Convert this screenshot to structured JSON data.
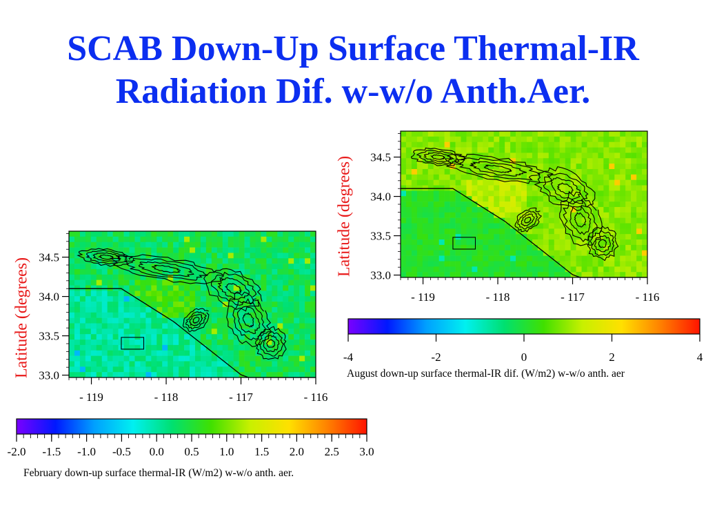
{
  "slide": {
    "title_line1": "SCAB Down-Up Surface Thermal-IR",
    "title_line2": "Radiation Dif. w-w/o Anth.Aer.",
    "title_color": "#0b2ef0",
    "label_color": "#e81818"
  },
  "chart_data": [
    {
      "type": "heatmap",
      "title": "",
      "ylabel": "Latitude (degrees)",
      "xlabel": "",
      "x_ticks": [
        "-119",
        "-118",
        "-117",
        "-116"
      ],
      "y_ticks": [
        "33.0",
        "33.5",
        "34.0",
        "34.5"
      ],
      "xlim": [
        -119.3,
        -116.0
      ],
      "ylim": [
        32.97,
        34.83
      ],
      "colorbar": {
        "label": "February down-up surface thermal-IR (W/m2) w-w/o anth. aer.",
        "ticks": [
          "-2.0",
          "-1.5",
          "-1.0",
          "-0.5",
          "0.0",
          "0.5",
          "1.0",
          "1.5",
          "2.0",
          "2.5",
          "3.0"
        ],
        "range": [
          -2.0,
          3.0
        ],
        "colors": [
          "#7a00ff",
          "#0018ff",
          "#00a0ff",
          "#00f0f0",
          "#00e070",
          "#40e000",
          "#c8f000",
          "#ffe000",
          "#ff8000",
          "#ff1400"
        ]
      },
      "field": {
        "ocean_value": 0.05,
        "inland_value": 0.35,
        "hotspot_value": 1.2,
        "cool_spot_value": -1.2
      },
      "contours": "black topography contours",
      "grid": false
    },
    {
      "type": "heatmap",
      "title": "",
      "ylabel": "Latitude (degrees)",
      "xlabel": "",
      "x_ticks": [
        "-119",
        "-118",
        "-117",
        "-116"
      ],
      "y_ticks": [
        "33.0",
        "33.5",
        "34.0",
        "34.5"
      ],
      "xlim": [
        -119.3,
        -116.0
      ],
      "ylim": [
        32.97,
        34.83
      ],
      "colorbar": {
        "label": "August down-up surface thermal-IR dif. (W/m2) w-w/o anth. aer",
        "ticks": [
          "-4",
          "-2",
          "0",
          "2",
          "4"
        ],
        "range": [
          -4,
          4
        ],
        "colors": [
          "#7a00ff",
          "#0018ff",
          "#00a0ff",
          "#00f0f0",
          "#00e070",
          "#40e000",
          "#c8f000",
          "#ffe000",
          "#ff8000",
          "#ff1400"
        ]
      },
      "field": {
        "ocean_value": 0.1,
        "inland_value": 0.9,
        "hotspot_value": 2.4,
        "cool_spot_value": -1.5
      },
      "contours": "black topography contours",
      "grid": false
    }
  ]
}
